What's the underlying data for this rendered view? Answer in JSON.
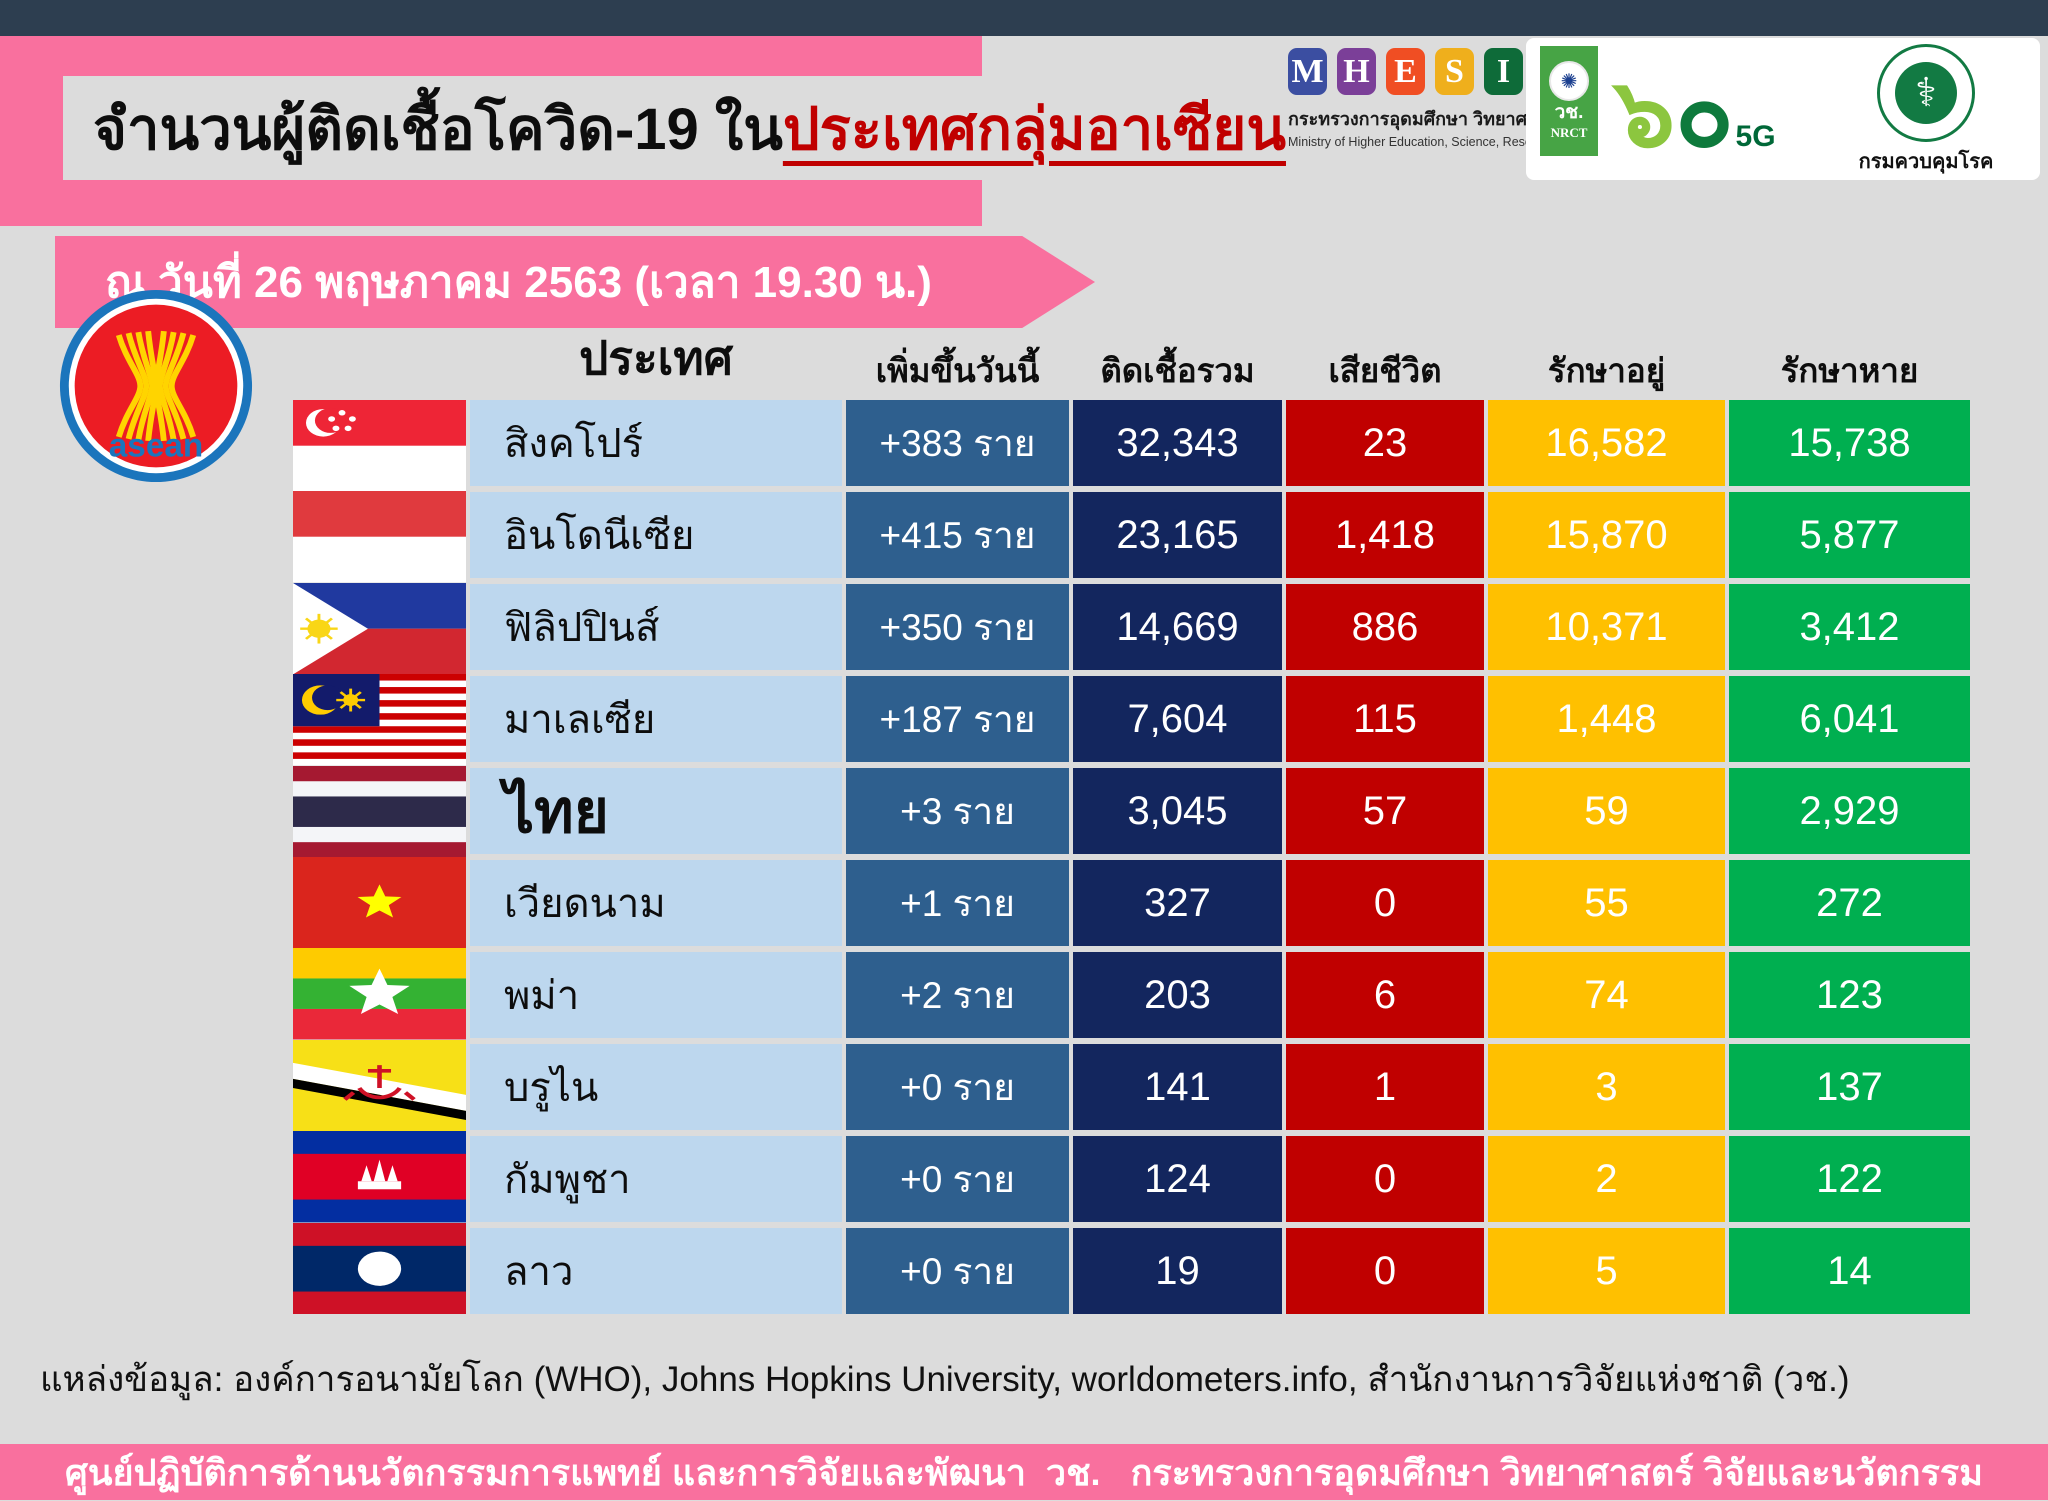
{
  "header": {
    "title_black": "จำนวนผู้ติดเชื้อโควิด-19 ใน",
    "title_red": "ประเทศกลุ่มอาเซียน",
    "date_banner": "ณ วันที่ 26 พฤษภาคม 2563 (เวลา 19.30 น.)"
  },
  "logos": {
    "mhesi_letters": [
      "M",
      "H",
      "E",
      "S",
      "I"
    ],
    "mhesi_colors": [
      "#3B4EA1",
      "#7B3F98",
      "#F04E23",
      "#EFAF1C",
      "#0E6B39"
    ],
    "mhesi_th": "กระทรวงการอุดมศึกษา วิทยาศาสตร์ วิจัยและนวัตกรรม",
    "mhesi_en": "Ministry of Higher Education, Science, Research and Innovation",
    "nrct_th": "วช.",
    "nrct_en": "NRCT",
    "nrct_emblem_icon": "wheel-icon",
    "sixty_light": "๖",
    "sixty_dark": "๐",
    "sixty_5g": "5G",
    "moph_symbol_icon": "caduceus-icon",
    "moph_caption": "กรมควบคุมโรค",
    "asean_text": "asean"
  },
  "table": {
    "columns": [
      "ประเทศ",
      "เพิ่มขึ้นวันนี้",
      "ติดเชื้อรวม",
      "เสียชีวิต",
      "รักษาอยู่",
      "รักษาหาย"
    ],
    "rows": [
      {
        "flag": "singapore",
        "country": "สิงคโปร์",
        "new": "+383 ราย",
        "total": "32,343",
        "deaths": "23",
        "treating": "16,582",
        "recovered": "15,738",
        "highlight": false
      },
      {
        "flag": "indonesia",
        "country": "อินโดนีเซีย",
        "new": "+415 ราย",
        "total": "23,165",
        "deaths": "1,418",
        "treating": "15,870",
        "recovered": "5,877",
        "highlight": false
      },
      {
        "flag": "philippines",
        "country": "ฟิลิปปินส์",
        "new": "+350 ราย",
        "total": "14,669",
        "deaths": "886",
        "treating": "10,371",
        "recovered": "3,412",
        "highlight": false
      },
      {
        "flag": "malaysia",
        "country": "มาเลเซีย",
        "new": "+187 ราย",
        "total": "7,604",
        "deaths": "115",
        "treating": "1,448",
        "recovered": "6,041",
        "highlight": false
      },
      {
        "flag": "thailand",
        "country": "ไทย",
        "new": "+3 ราย",
        "total": "3,045",
        "deaths": "57",
        "treating": "59",
        "recovered": "2,929",
        "highlight": true
      },
      {
        "flag": "vietnam",
        "country": "เวียดนาม",
        "new": "+1 ราย",
        "total": "327",
        "deaths": "0",
        "treating": "55",
        "recovered": "272",
        "highlight": false
      },
      {
        "flag": "myanmar",
        "country": "พม่า",
        "new": "+2 ราย",
        "total": "203",
        "deaths": "6",
        "treating": "74",
        "recovered": "123",
        "highlight": false
      },
      {
        "flag": "brunei",
        "country": "บรูไน",
        "new": "+0 ราย",
        "total": "141",
        "deaths": "1",
        "treating": "3",
        "recovered": "137",
        "highlight": false
      },
      {
        "flag": "cambodia",
        "country": "กัมพูชา",
        "new": "+0 ราย",
        "total": "124",
        "deaths": "0",
        "treating": "2",
        "recovered": "122",
        "highlight": false
      },
      {
        "flag": "laos",
        "country": "ลาว",
        "new": "+0 ราย",
        "total": "19",
        "deaths": "0",
        "treating": "5",
        "recovered": "14",
        "highlight": false
      }
    ]
  },
  "source": "แหล่งข้อมูล: องค์การอนามัยโลก (WHO), Johns Hopkins University, worldometers.info, สำนักงานการวิจัยแห่งชาติ (วช.)",
  "footer": "ศูนย์ปฏิบัติการด้านนวัตกรรมการแพทย์ และการวิจัยและพัฒนา  วช.   กระทรวงการอุดมศึกษา วิทยาศาสตร์ วิจัยและนวัตกรรม",
  "colors": {
    "topbar": "#2D3E50",
    "pink": "#F9709E",
    "background": "#DCDCDC",
    "title_red": "#C00000",
    "col_country": "#BDD7EE",
    "col_new": "#2E5F8E",
    "col_total": "#13265E",
    "col_deaths": "#C00000",
    "col_treating": "#FFC000",
    "col_recovered": "#00AF50"
  },
  "chart_data": {
    "type": "table",
    "title": "จำนวนผู้ติดเชื้อโควิด-19 ในประเทศกลุ่มอาเซียน",
    "subtitle": "ณ วันที่ 26 พฤษภาคม 2563 (เวลา 19.30 น.)",
    "columns": [
      "ประเทศ",
      "เพิ่มขึ้นวันนี้",
      "ติดเชื้อรวม",
      "เสียชีวิต",
      "รักษาอยู่",
      "รักษาหาย"
    ],
    "rows": [
      [
        "สิงคโปร์",
        383,
        32343,
        23,
        16582,
        15738
      ],
      [
        "อินโดนีเซีย",
        415,
        23165,
        1418,
        15870,
        5877
      ],
      [
        "ฟิลิปปินส์",
        350,
        14669,
        886,
        10371,
        3412
      ],
      [
        "มาเลเซีย",
        187,
        7604,
        115,
        1448,
        6041
      ],
      [
        "ไทย",
        3,
        3045,
        57,
        59,
        2929
      ],
      [
        "เวียดนาม",
        1,
        327,
        0,
        55,
        272
      ],
      [
        "พม่า",
        2,
        203,
        6,
        74,
        123
      ],
      [
        "บรูไน",
        0,
        141,
        1,
        3,
        137
      ],
      [
        "กัมพูชา",
        0,
        124,
        0,
        2,
        122
      ],
      [
        "ลาว",
        0,
        19,
        0,
        5,
        14
      ]
    ]
  }
}
